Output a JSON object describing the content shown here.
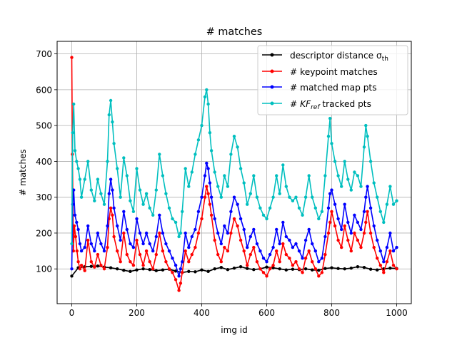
{
  "chart_data": {
    "type": "line",
    "title": "# matches",
    "xlabel": "img id",
    "ylabel": "# matches",
    "xlim": [
      -45,
      1045
    ],
    "ylim": [
      3,
      735
    ],
    "xticks": [
      0,
      200,
      400,
      600,
      800,
      1000
    ],
    "yticks": [
      100,
      200,
      300,
      400,
      500,
      600,
      700
    ],
    "grid": true,
    "legend_position": "top-right",
    "legend": [
      {
        "label": "descriptor distance σ",
        "sub": "th",
        "suffix": "",
        "color": "#000000"
      },
      {
        "label": "# keypoint matches",
        "sub": "",
        "suffix": "",
        "color": "#ff0000"
      },
      {
        "label": "# matched map pts",
        "sub": "",
        "suffix": "",
        "color": "#0000ff"
      },
      {
        "label": "# KF",
        "sub": "ref",
        "suffix": "  tracked pts",
        "color": "#00bfbf"
      }
    ],
    "series": [
      {
        "name": "descriptor distance σth",
        "color": "#000000",
        "x": [
          0,
          20,
          40,
          60,
          80,
          100,
          120,
          140,
          160,
          180,
          200,
          220,
          240,
          260,
          280,
          300,
          320,
          340,
          360,
          380,
          400,
          420,
          440,
          460,
          480,
          500,
          520,
          540,
          560,
          580,
          600,
          620,
          640,
          660,
          680,
          700,
          720,
          740,
          760,
          780,
          800,
          820,
          840,
          860,
          880,
          900,
          920,
          940,
          960,
          980,
          1000
        ],
        "y": [
          80,
          103,
          106,
          107,
          108,
          105,
          103,
          100,
          96,
          93,
          97,
          100,
          98,
          95,
          97,
          99,
          94,
          90,
          93,
          92,
          97,
          93,
          100,
          104,
          98,
          102,
          106,
          101,
          98,
          100,
          105,
          103,
          100,
          97,
          99,
          98,
          100,
          97,
          96,
          101,
          103,
          101,
          100,
          102,
          106,
          104,
          99,
          97,
          100,
          102,
          101
        ]
      },
      {
        "name": "# keypoint matches",
        "color": "#ff0000",
        "x": [
          0,
          2,
          5,
          8,
          12,
          16,
          20,
          25,
          30,
          40,
          50,
          60,
          70,
          80,
          90,
          100,
          110,
          115,
          120,
          125,
          130,
          140,
          150,
          160,
          170,
          180,
          190,
          200,
          210,
          220,
          230,
          240,
          250,
          260,
          270,
          280,
          290,
          300,
          310,
          320,
          330,
          335,
          340,
          350,
          360,
          370,
          380,
          390,
          400,
          410,
          415,
          420,
          425,
          430,
          440,
          450,
          460,
          470,
          480,
          490,
          500,
          510,
          520,
          530,
          540,
          550,
          560,
          570,
          580,
          590,
          600,
          610,
          620,
          630,
          640,
          650,
          660,
          670,
          680,
          690,
          700,
          710,
          720,
          730,
          740,
          750,
          760,
          770,
          780,
          790,
          795,
          800,
          810,
          820,
          830,
          840,
          850,
          860,
          870,
          880,
          890,
          900,
          905,
          910,
          920,
          930,
          940,
          950,
          960,
          970,
          980,
          990,
          1000
        ],
        "y": [
          690,
          420,
          150,
          220,
          190,
          150,
          120,
          100,
          110,
          95,
          180,
          120,
          105,
          140,
          110,
          100,
          160,
          240,
          270,
          250,
          190,
          150,
          120,
          200,
          140,
          120,
          110,
          180,
          140,
          110,
          150,
          120,
          100,
          140,
          200,
          150,
          120,
          100,
          90,
          70,
          40,
          60,
          90,
          150,
          120,
          140,
          160,
          200,
          240,
          300,
          330,
          310,
          280,
          250,
          180,
          140,
          120,
          160,
          150,
          200,
          240,
          220,
          180,
          150,
          110,
          140,
          160,
          120,
          100,
          90,
          80,
          100,
          110,
          150,
          120,
          170,
          140,
          130,
          110,
          120,
          100,
          90,
          130,
          150,
          120,
          100,
          80,
          90,
          140,
          200,
          230,
          260,
          220,
          180,
          160,
          220,
          180,
          150,
          200,
          180,
          160,
          200,
          230,
          260,
          200,
          160,
          130,
          110,
          90,
          120,
          150,
          110,
          100
        ]
      },
      {
        "name": "# matched map pts",
        "color": "#0000ff",
        "x": [
          0,
          3,
          6,
          10,
          15,
          20,
          25,
          30,
          40,
          50,
          60,
          70,
          80,
          90,
          100,
          110,
          115,
          120,
          125,
          130,
          140,
          150,
          160,
          170,
          180,
          190,
          200,
          210,
          220,
          230,
          240,
          250,
          260,
          270,
          280,
          290,
          300,
          310,
          320,
          330,
          335,
          340,
          350,
          360,
          370,
          380,
          390,
          400,
          410,
          415,
          420,
          425,
          430,
          440,
          450,
          460,
          470,
          480,
          490,
          500,
          510,
          520,
          530,
          540,
          550,
          560,
          570,
          580,
          590,
          600,
          610,
          620,
          630,
          640,
          650,
          660,
          670,
          680,
          690,
          700,
          710,
          720,
          730,
          740,
          750,
          760,
          770,
          780,
          790,
          795,
          800,
          810,
          820,
          830,
          840,
          850,
          860,
          870,
          880,
          890,
          900,
          905,
          910,
          920,
          930,
          940,
          950,
          960,
          970,
          980,
          990,
          1000
        ],
        "y": [
          100,
          280,
          320,
          250,
          230,
          210,
          170,
          150,
          160,
          220,
          170,
          150,
          200,
          170,
          150,
          220,
          310,
          350,
          320,
          270,
          220,
          180,
          260,
          210,
          170,
          160,
          240,
          200,
          170,
          200,
          170,
          150,
          190,
          250,
          200,
          170,
          150,
          130,
          110,
          80,
          100,
          120,
          200,
          160,
          190,
          210,
          260,
          300,
          360,
          395,
          380,
          340,
          300,
          240,
          200,
          170,
          220,
          200,
          260,
          300,
          280,
          240,
          210,
          160,
          190,
          210,
          170,
          150,
          130,
          120,
          140,
          160,
          210,
          170,
          230,
          190,
          180,
          160,
          170,
          150,
          130,
          180,
          210,
          170,
          150,
          120,
          130,
          190,
          270,
          310,
          320,
          280,
          240,
          210,
          280,
          230,
          200,
          250,
          230,
          210,
          260,
          300,
          330,
          270,
          220,
          180,
          150,
          120,
          160,
          200,
          150,
          160
        ]
      },
      {
        "name": "# KFref tracked pts",
        "color": "#00bfbf",
        "x": [
          0,
          3,
          6,
          10,
          15,
          20,
          25,
          30,
          40,
          50,
          60,
          70,
          80,
          90,
          100,
          110,
          115,
          120,
          125,
          130,
          140,
          150,
          160,
          170,
          180,
          190,
          200,
          210,
          220,
          230,
          240,
          250,
          260,
          270,
          280,
          290,
          300,
          310,
          320,
          330,
          335,
          340,
          350,
          360,
          370,
          380,
          390,
          400,
          410,
          415,
          420,
          425,
          430,
          440,
          450,
          460,
          470,
          480,
          490,
          500,
          510,
          520,
          530,
          540,
          550,
          560,
          570,
          580,
          590,
          600,
          610,
          620,
          630,
          640,
          650,
          660,
          670,
          680,
          690,
          700,
          710,
          720,
          730,
          740,
          750,
          760,
          770,
          780,
          790,
          795,
          800,
          810,
          820,
          830,
          840,
          850,
          860,
          870,
          880,
          890,
          900,
          905,
          910,
          920,
          930,
          940,
          950,
          960,
          970,
          980,
          990,
          1000
        ],
        "y": [
          170,
          480,
          560,
          430,
          400,
          380,
          350,
          300,
          350,
          400,
          320,
          290,
          350,
          310,
          280,
          400,
          530,
          570,
          510,
          450,
          380,
          300,
          410,
          360,
          290,
          260,
          380,
          320,
          280,
          310,
          270,
          250,
          320,
          420,
          360,
          310,
          270,
          240,
          230,
          190,
          200,
          260,
          380,
          330,
          370,
          420,
          460,
          500,
          580,
          600,
          560,
          480,
          430,
          370,
          330,
          300,
          360,
          330,
          420,
          470,
          440,
          380,
          340,
          280,
          310,
          360,
          300,
          270,
          250,
          240,
          270,
          300,
          360,
          310,
          390,
          330,
          300,
          290,
          300,
          270,
          250,
          300,
          360,
          300,
          270,
          240,
          260,
          360,
          470,
          520,
          450,
          400,
          360,
          330,
          400,
          350,
          320,
          370,
          360,
          330,
          440,
          500,
          470,
          400,
          340,
          300,
          260,
          230,
          280,
          330,
          280,
          290
        ]
      }
    ]
  }
}
